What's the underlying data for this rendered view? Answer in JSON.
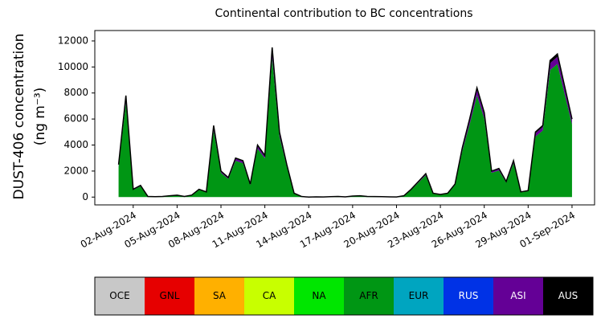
{
  "chart_data": {
    "type": "stacked_area",
    "title": "Continental contribution to BC concentrations",
    "ylabel": [
      "DUST-406 concentration",
      "(ng m⁻³)"
    ],
    "x": [
      "2024-08-01 00:00",
      "2024-08-01 12:00",
      "2024-08-02 00:00",
      "2024-08-02 12:00",
      "2024-08-03 00:00",
      "2024-08-03 12:00",
      "2024-08-04 00:00",
      "2024-08-04 12:00",
      "2024-08-05 00:00",
      "2024-08-05 12:00",
      "2024-08-06 00:00",
      "2024-08-06 12:00",
      "2024-08-07 00:00",
      "2024-08-07 12:00",
      "2024-08-08 00:00",
      "2024-08-08 12:00",
      "2024-08-09 00:00",
      "2024-08-09 12:00",
      "2024-08-10 00:00",
      "2024-08-10 12:00",
      "2024-08-11 00:00",
      "2024-08-11 12:00",
      "2024-08-12 00:00",
      "2024-08-12 12:00",
      "2024-08-13 00:00",
      "2024-08-13 12:00",
      "2024-08-14 00:00",
      "2024-08-14 12:00",
      "2024-08-15 00:00",
      "2024-08-15 12:00",
      "2024-08-16 00:00",
      "2024-08-16 12:00",
      "2024-08-17 00:00",
      "2024-08-17 12:00",
      "2024-08-18 00:00",
      "2024-08-18 12:00",
      "2024-08-19 00:00",
      "2024-08-19 12:00",
      "2024-08-20 00:00",
      "2024-08-20 12:00",
      "2024-08-21 00:00",
      "2024-08-21 12:00",
      "2024-08-22 00:00",
      "2024-08-22 12:00",
      "2024-08-23 00:00",
      "2024-08-23 12:00",
      "2024-08-24 00:00",
      "2024-08-24 12:00",
      "2024-08-25 00:00",
      "2024-08-25 12:00",
      "2024-08-26 00:00",
      "2024-08-26 12:00",
      "2024-08-27 00:00",
      "2024-08-27 12:00",
      "2024-08-28 00:00",
      "2024-08-28 12:00",
      "2024-08-29 00:00",
      "2024-08-29 12:00",
      "2024-08-30 00:00",
      "2024-08-30 12:00",
      "2024-08-31 00:00",
      "2024-08-31 12:00",
      "2024-09-01 00:00"
    ],
    "series": [
      {
        "name": "OCE",
        "color": "#c8c8c8",
        "values": [
          0,
          0,
          0,
          0,
          0,
          0,
          0,
          0,
          0,
          0,
          0,
          0,
          0,
          0,
          0,
          0,
          0,
          0,
          0,
          0,
          0,
          0,
          0,
          0,
          0,
          0,
          0,
          0,
          0,
          0,
          0,
          0,
          0,
          0,
          0,
          0,
          0,
          0,
          0,
          0,
          0,
          0,
          0,
          0,
          0,
          0,
          0,
          0,
          0,
          0,
          0,
          0,
          0,
          0,
          0,
          0,
          0,
          0,
          0,
          0,
          0,
          0,
          0
        ]
      },
      {
        "name": "GNL",
        "color": "#e60000",
        "values": [
          0,
          0,
          0,
          0,
          0,
          0,
          0,
          0,
          0,
          0,
          0,
          0,
          0,
          0,
          0,
          0,
          0,
          0,
          0,
          0,
          0,
          0,
          0,
          0,
          0,
          0,
          0,
          0,
          0,
          0,
          0,
          0,
          0,
          0,
          0,
          0,
          0,
          0,
          0,
          0,
          0,
          0,
          0,
          0,
          0,
          0,
          0,
          0,
          0,
          0,
          0,
          0,
          0,
          0,
          0,
          0,
          0,
          0,
          0,
          0,
          0,
          0,
          0
        ]
      },
      {
        "name": "SA",
        "color": "#ffb000",
        "values": [
          0,
          0,
          0,
          0,
          0,
          0,
          0,
          0,
          0,
          0,
          0,
          0,
          0,
          0,
          0,
          0,
          0,
          0,
          0,
          0,
          0,
          0,
          0,
          0,
          0,
          0,
          0,
          0,
          0,
          0,
          0,
          0,
          0,
          0,
          0,
          0,
          0,
          0,
          0,
          0,
          0,
          0,
          0,
          0,
          0,
          0,
          0,
          0,
          0,
          0,
          0,
          0,
          0,
          0,
          0,
          0,
          0,
          0,
          0,
          0,
          0,
          0,
          0
        ]
      },
      {
        "name": "CA",
        "color": "#c8ff00",
        "values": [
          0,
          0,
          0,
          0,
          0,
          0,
          0,
          0,
          0,
          0,
          0,
          0,
          0,
          0,
          0,
          0,
          0,
          0,
          0,
          0,
          0,
          0,
          0,
          0,
          0,
          0,
          0,
          0,
          0,
          0,
          0,
          0,
          0,
          0,
          0,
          0,
          0,
          0,
          0,
          0,
          0,
          0,
          0,
          0,
          0,
          0,
          0,
          0,
          0,
          0,
          0,
          0,
          0,
          0,
          0,
          0,
          0,
          0,
          0,
          0,
          0,
          0,
          0
        ]
      },
      {
        "name": "NA",
        "color": "#00e600",
        "values": [
          0,
          0,
          0,
          0,
          0,
          0,
          0,
          0,
          0,
          0,
          0,
          0,
          0,
          0,
          0,
          0,
          0,
          0,
          0,
          0,
          0,
          0,
          0,
          0,
          0,
          0,
          0,
          0,
          0,
          0,
          0,
          0,
          0,
          0,
          0,
          0,
          0,
          0,
          0,
          0,
          0,
          0,
          0,
          0,
          0,
          0,
          0,
          0,
          0,
          0,
          0,
          0,
          0,
          0,
          0,
          0,
          0,
          0,
          0,
          0,
          0,
          0,
          0
        ]
      },
      {
        "name": "AFR",
        "color": "#009614",
        "values": [
          2325,
          7254,
          558,
          837,
          46,
          27,
          46,
          93,
          139,
          46,
          139,
          558,
          372,
          5115,
          1860,
          1395,
          2790,
          2604,
          930,
          3720,
          2976,
          10695,
          4650,
          2325,
          279,
          46,
          0,
          19,
          9,
          27,
          46,
          19,
          74,
          93,
          46,
          37,
          27,
          19,
          9,
          93,
          558,
          1116,
          1674,
          279,
          186,
          279,
          930,
          3534,
          5580,
          7812,
          6045,
          1860,
          2046,
          1116,
          2604,
          372,
          465,
          4650,
          5115,
          9765,
          10230,
          7905,
          5580
        ]
      },
      {
        "name": "EUR",
        "color": "#00a5c0",
        "values": [
          0,
          0,
          0,
          0,
          0,
          0,
          0,
          0,
          0,
          0,
          0,
          0,
          0,
          0,
          0,
          0,
          0,
          0,
          0,
          0,
          0,
          0,
          0,
          0,
          0,
          0,
          0,
          0,
          0,
          0,
          0,
          0,
          0,
          0,
          0,
          0,
          0,
          0,
          0,
          0,
          0,
          0,
          0,
          0,
          0,
          0,
          0,
          0,
          0,
          0,
          0,
          0,
          0,
          0,
          0,
          0,
          0,
          0,
          0,
          0,
          0,
          0,
          0
        ]
      },
      {
        "name": "RUS",
        "color": "#0032e6",
        "values": [
          0,
          0,
          0,
          0,
          0,
          0,
          0,
          0,
          0,
          0,
          0,
          0,
          0,
          0,
          0,
          0,
          0,
          0,
          0,
          0,
          0,
          0,
          0,
          0,
          0,
          0,
          0,
          0,
          0,
          0,
          0,
          0,
          0,
          0,
          0,
          0,
          0,
          0,
          0,
          0,
          0,
          0,
          0,
          0,
          0,
          0,
          0,
          0,
          0,
          0,
          0,
          0,
          0,
          0,
          0,
          0,
          0,
          0,
          0,
          0,
          0,
          0,
          0
        ]
      },
      {
        "name": "ASI",
        "color": "#640096",
        "values": [
          125,
          390,
          30,
          45,
          3,
          2,
          3,
          5,
          8,
          3,
          8,
          30,
          20,
          275,
          100,
          75,
          150,
          140,
          50,
          200,
          160,
          575,
          250,
          125,
          15,
          3,
          0,
          1,
          1,
          2,
          3,
          1,
          4,
          5,
          3,
          2,
          2,
          1,
          1,
          5,
          30,
          60,
          90,
          15,
          10,
          15,
          50,
          190,
          300,
          420,
          325,
          100,
          110,
          60,
          140,
          20,
          25,
          250,
          275,
          525,
          550,
          425,
          300
        ]
      },
      {
        "name": "AUS",
        "color": "#000000",
        "values": [
          50,
          156,
          12,
          18,
          1,
          1,
          1,
          2,
          3,
          1,
          3,
          12,
          8,
          110,
          40,
          30,
          60,
          56,
          20,
          80,
          64,
          230,
          100,
          50,
          6,
          1,
          0,
          0,
          0,
          1,
          1,
          0,
          2,
          2,
          1,
          1,
          1,
          0,
          0,
          2,
          12,
          24,
          36,
          6,
          4,
          6,
          20,
          76,
          120,
          168,
          130,
          40,
          44,
          24,
          56,
          8,
          10,
          100,
          110,
          210,
          220,
          170,
          120
        ]
      }
    ],
    "xlim": [
      "2024-07-30 09:00",
      "2024-09-02 13:00"
    ],
    "xticks": [
      {
        "value": "2024-08-02 00:00",
        "label": "02-Aug-2024"
      },
      {
        "value": "2024-08-05 00:00",
        "label": "05-Aug-2024"
      },
      {
        "value": "2024-08-08 00:00",
        "label": "08-Aug-2024"
      },
      {
        "value": "2024-08-11 00:00",
        "label": "11-Aug-2024"
      },
      {
        "value": "2024-08-14 00:00",
        "label": "14-Aug-2024"
      },
      {
        "value": "2024-08-17 00:00",
        "label": "17-Aug-2024"
      },
      {
        "value": "2024-08-20 00:00",
        "label": "20-Aug-2024"
      },
      {
        "value": "2024-08-23 00:00",
        "label": "23-Aug-2024"
      },
      {
        "value": "2024-08-26 00:00",
        "label": "26-Aug-2024"
      },
      {
        "value": "2024-08-29 00:00",
        "label": "29-Aug-2024"
      },
      {
        "value": "2024-09-01 00:00",
        "label": "01-Sep-2024"
      }
    ],
    "ylim": [
      -600,
      12800
    ],
    "yticks": [
      0,
      2000,
      4000,
      6000,
      8000,
      10000,
      12000
    ]
  }
}
